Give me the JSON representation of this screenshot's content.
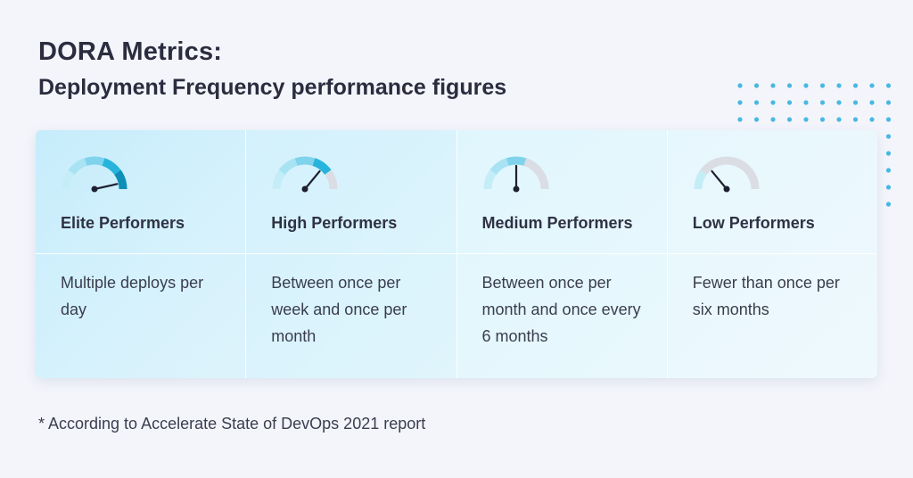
{
  "header": {
    "title": "DORA Metrics:",
    "subtitle": "Deployment Frequency performance figures"
  },
  "colors": {
    "accent_dark": "#0e8fb8",
    "accent": "#27b4dc",
    "accent_light": "#a8e3f3",
    "gauge_empty": "#dadde3",
    "dots": "#49b8e2"
  },
  "columns": [
    {
      "heading": "Elite Performers",
      "description": "Multiple deploys per day",
      "gauge_level": 1.0
    },
    {
      "heading": "High Performers",
      "description": "Between once per week and once per month",
      "gauge_level": 0.75
    },
    {
      "heading": "Medium Performers",
      "description": "Between once per month and once every 6 months",
      "gauge_level": 0.5
    },
    {
      "heading": "Low Performers",
      "description": "Fewer than once per six months",
      "gauge_level": 0.25
    }
  ],
  "footnote": "* According to Accelerate State of DevOps 2021 report"
}
